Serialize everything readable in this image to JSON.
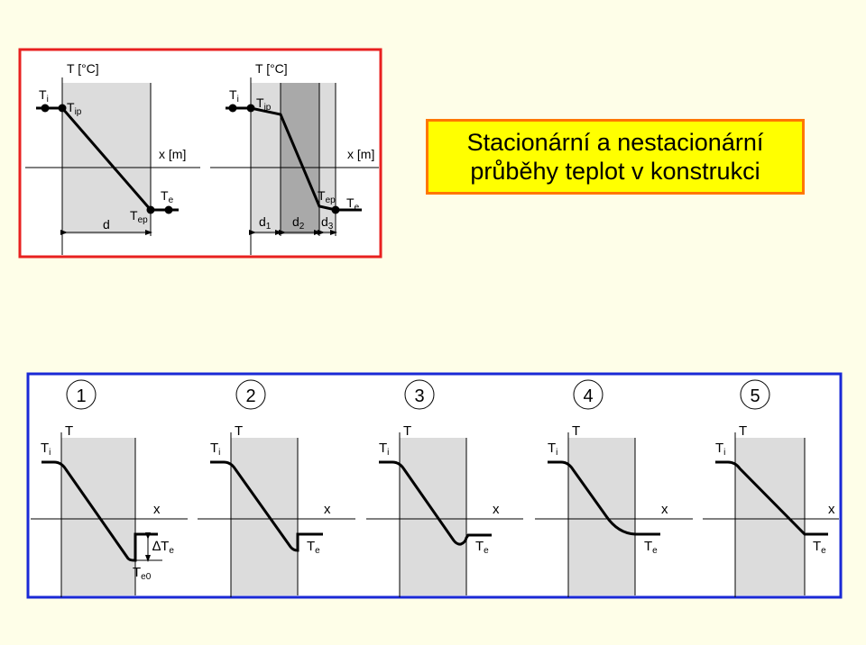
{
  "title": {
    "line1": "Stacionární a nestacionární",
    "line2": "průběhy teplot v konstrukci"
  },
  "colors": {
    "stationary_frame": "#e8201f",
    "nonstationary_frame": "#1a29d6",
    "title_fill": "#ffff00",
    "title_border": "#ff7700",
    "layer_light": "#dcdcdc",
    "layer_dark": "#a9a9a9",
    "background": "#fefee8"
  },
  "stationary": {
    "single_layer": {
      "y_axis": "T [°C]",
      "x_axis": "x [m]",
      "ti": "T",
      "ti_sub": "i",
      "tip": "T",
      "tip_sub": "ip",
      "te": "T",
      "te_sub": "e",
      "tep": "T",
      "tep_sub": "ep",
      "thickness": "d"
    },
    "three_layer": {
      "y_axis": "T [°C]",
      "x_axis": "x [m]",
      "ti": "T",
      "ti_sub": "i",
      "tip": "T",
      "tip_sub": "ip",
      "tep": "T",
      "tep_sub": "ep",
      "te": "T",
      "te_sub": "e",
      "d1": "d",
      "d1_sub": "1",
      "d2": "d",
      "d2_sub": "2",
      "d3": "d",
      "d3_sub": "3"
    }
  },
  "nonstationary": {
    "cases": [
      {
        "number": "1",
        "y_axis": "T",
        "x_axis": "x",
        "ti": "T",
        "ti_sub": "i",
        "delta": "∆T",
        "delta_sub": "e",
        "te0": "T",
        "te0_sub": "e0"
      },
      {
        "number": "2",
        "y_axis": "T",
        "x_axis": "x",
        "ti": "T",
        "ti_sub": "i",
        "te": "T",
        "te_sub": "e"
      },
      {
        "number": "3",
        "y_axis": "T",
        "x_axis": "x",
        "ti": "T",
        "ti_sub": "i",
        "te": "T",
        "te_sub": "e"
      },
      {
        "number": "4",
        "y_axis": "T",
        "x_axis": "x",
        "ti": "T",
        "ti_sub": "i",
        "te": "T",
        "te_sub": "e"
      },
      {
        "number": "5",
        "y_axis": "T",
        "x_axis": "x",
        "ti": "T",
        "ti_sub": "i",
        "te": "T",
        "te_sub": "e"
      }
    ]
  }
}
